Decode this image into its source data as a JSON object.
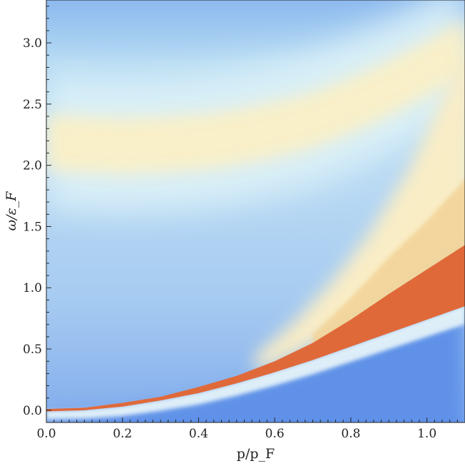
{
  "chart_data": {
    "type": "heatmap",
    "title": "",
    "xlabel": "p/p_F",
    "ylabel": "ω/ε_F",
    "xlim": [
      0.0,
      1.1
    ],
    "ylim": [
      -0.1,
      3.35
    ],
    "x_ticks": [
      {
        "value": 0.0,
        "label": "0.0"
      },
      {
        "value": 0.2,
        "label": "0.2"
      },
      {
        "value": 0.4,
        "label": "0.4"
      },
      {
        "value": 0.6,
        "label": "0.6"
      },
      {
        "value": 0.8,
        "label": "0.8"
      },
      {
        "value": 1.0,
        "label": "1.0"
      }
    ],
    "y_ticks": [
      {
        "value": 0.0,
        "label": "0.0"
      },
      {
        "value": 0.5,
        "label": "0.5"
      },
      {
        "value": 1.0,
        "label": "1.0"
      },
      {
        "value": 1.5,
        "label": "1.5"
      },
      {
        "value": 2.0,
        "label": "2.0"
      },
      {
        "value": 2.5,
        "label": "2.5"
      },
      {
        "value": 3.0,
        "label": "3.0"
      }
    ],
    "colormap": [
      "#5b8fe8",
      "#8fb8ee",
      "#c4e2f4",
      "#e6f6f8",
      "#fbf3cc",
      "#f6dfa6",
      "#e0693a"
    ],
    "features": {
      "dispersion_band": {
        "x": [
          0.0,
          0.1,
          0.2,
          0.3,
          0.4,
          0.5,
          0.6,
          0.7,
          0.8,
          0.9,
          1.0,
          1.1
        ],
        "lower": [
          -0.01,
          0.0,
          0.03,
          0.08,
          0.14,
          0.22,
          0.31,
          0.41,
          0.52,
          0.63,
          0.74,
          0.85
        ],
        "upper": [
          0.01,
          0.02,
          0.06,
          0.11,
          0.19,
          0.28,
          0.4,
          0.55,
          0.74,
          0.95,
          1.15,
          1.35
        ]
      },
      "upper_band": {
        "x": [
          0.0,
          0.1,
          0.2,
          0.3,
          0.4,
          0.5,
          0.6,
          0.7,
          0.8,
          0.9,
          1.0,
          1.1
        ],
        "center": [
          2.2,
          2.18,
          2.17,
          2.18,
          2.2,
          2.24,
          2.3,
          2.38,
          2.5,
          2.64,
          2.8,
          2.98
        ]
      }
    }
  }
}
